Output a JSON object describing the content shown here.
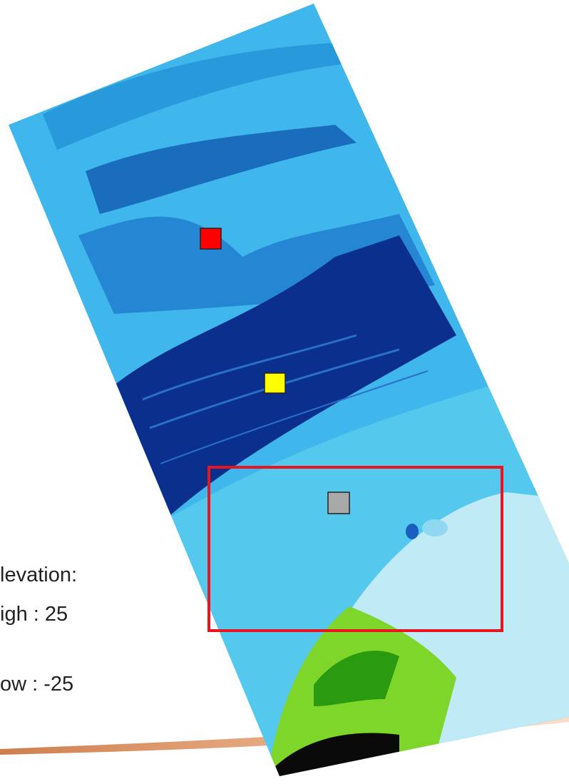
{
  "legend": {
    "title": "levation:",
    "high": "igh : 25",
    "low": "ow : -25"
  }
}
